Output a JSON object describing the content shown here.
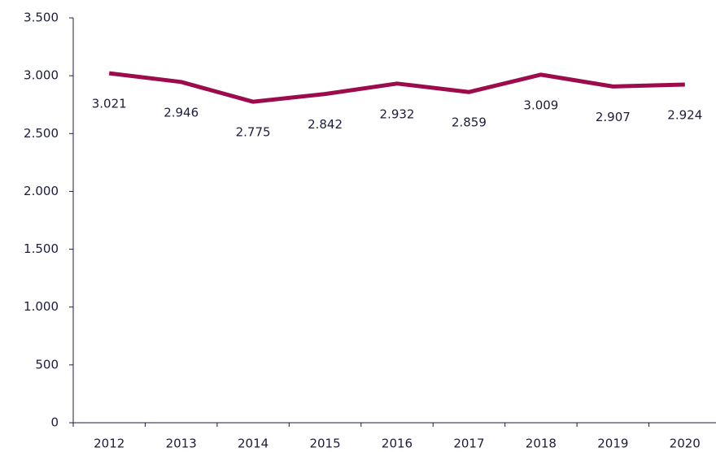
{
  "chart_data": {
    "type": "line",
    "categories": [
      "2012",
      "2013",
      "2014",
      "2015",
      "2016",
      "2017",
      "2018",
      "2019",
      "2020"
    ],
    "series": [
      {
        "name": null,
        "color": "#9c0b4b",
        "values": [
          3021,
          2946,
          2775,
          2842,
          2932,
          2859,
          3009,
          2907,
          2924
        ],
        "value_labels": [
          "3.021",
          "2.946",
          "2.775",
          "2.842",
          "2.932",
          "2.859",
          "3.009",
          "2.907",
          "2.924"
        ]
      }
    ],
    "ylim": [
      0,
      3500
    ],
    "yticks": [
      0,
      500,
      {
        "value": 1000,
        "label": "1.000"
      },
      {
        "value": 1500,
        "label": "1.500"
      },
      {
        "value": 2000,
        "label": "2.000"
      },
      {
        "value": 2500,
        "label": "2.500"
      },
      {
        "value": 3000,
        "label": "3.000"
      },
      {
        "value": 3500,
        "label": "3.500"
      }
    ],
    "grid": false
  }
}
